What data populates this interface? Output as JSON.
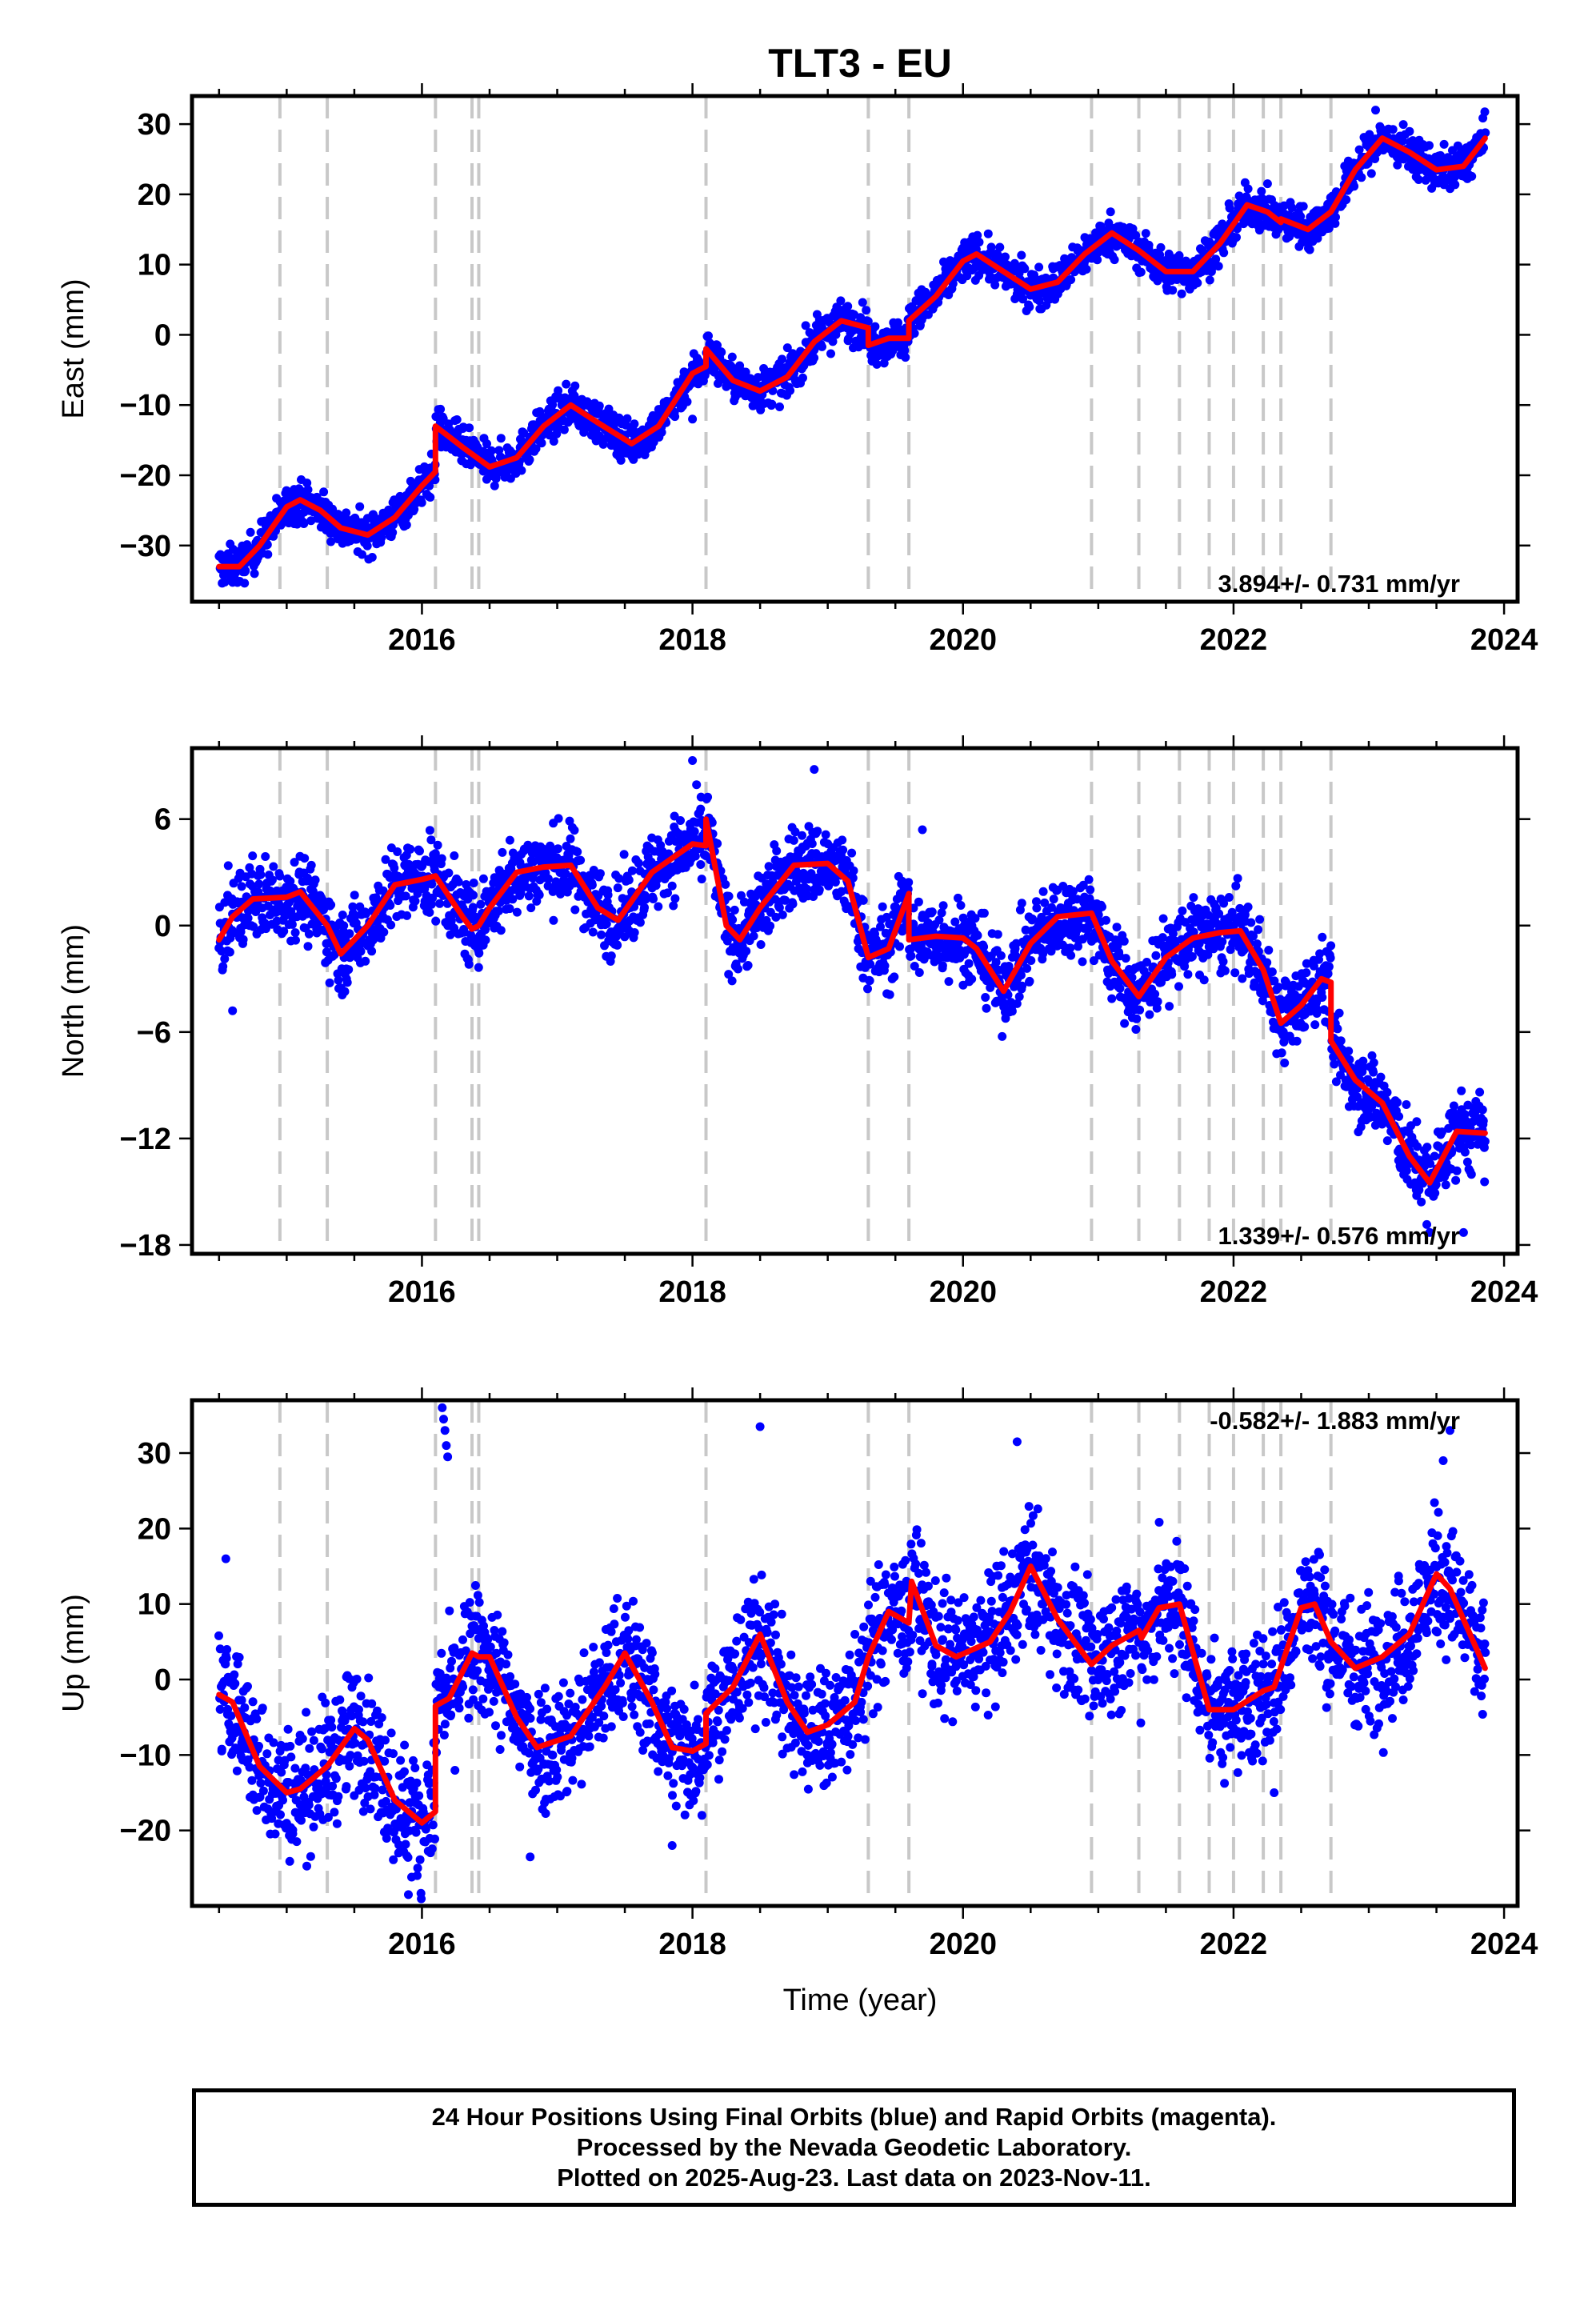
{
  "chart_data": {
    "title": "TLT3 - EU",
    "xlabel": "Time (year)",
    "xlim": [
      2014.3,
      2024.1
    ],
    "xticks": [
      2016,
      2018,
      2020,
      2022,
      2024
    ],
    "xtick_labels": [
      "2016",
      "2018",
      "2020",
      "2022",
      "2024"
    ],
    "colors": {
      "final_orbits": "#0000ff",
      "model_fit": "#ff0000",
      "step_lines": "#c8c8c8"
    },
    "steps": [
      2014.95,
      2015.3,
      2016.1,
      2016.37,
      2016.42,
      2018.1,
      2019.3,
      2019.6,
      2020.95,
      2021.3,
      2021.6,
      2021.82,
      2022.0,
      2022.22,
      2022.35,
      2022.72
    ],
    "panels": [
      {
        "type": "scatter",
        "component": "east",
        "ylabel": "East (mm)",
        "ylim": [
          -38,
          34
        ],
        "yticks": [
          -30,
          -20,
          -10,
          0,
          10,
          20,
          30
        ],
        "ytick_labels": [
          "−30",
          "−20",
          "−10",
          "0",
          "10",
          "20",
          "30"
        ],
        "rate_label": "3.894+/- 0.731 mm/yr",
        "rate_position": "bottom-right",
        "noise_mm": 1.4,
        "fit": [
          [
            2014.5,
            -33.0
          ],
          [
            2014.65,
            -33.0
          ],
          [
            2014.8,
            -30.0
          ],
          [
            2015.0,
            -24.5
          ],
          [
            2015.1,
            -23.5
          ],
          [
            2015.25,
            -25.0
          ],
          [
            2015.4,
            -27.5
          ],
          [
            2015.6,
            -28.5
          ],
          [
            2015.8,
            -26.0
          ],
          [
            2016.0,
            -21.5
          ],
          [
            2016.1,
            -19.5
          ],
          [
            2016.1,
            -13.0
          ],
          [
            2016.3,
            -16.0
          ],
          [
            2016.5,
            -18.8
          ],
          [
            2016.7,
            -17.5
          ],
          [
            2016.9,
            -13.0
          ],
          [
            2017.1,
            -10.0
          ],
          [
            2017.3,
            -12.5
          ],
          [
            2017.55,
            -15.5
          ],
          [
            2017.75,
            -13.0
          ],
          [
            2018.0,
            -5.5
          ],
          [
            2018.1,
            -4.5
          ],
          [
            2018.1,
            -2.0
          ],
          [
            2018.3,
            -6.5
          ],
          [
            2018.5,
            -8.0
          ],
          [
            2018.7,
            -6.0
          ],
          [
            2018.9,
            -1.0
          ],
          [
            2019.1,
            2.0
          ],
          [
            2019.3,
            1.0
          ],
          [
            2019.3,
            -1.5
          ],
          [
            2019.45,
            -0.5
          ],
          [
            2019.6,
            -0.5
          ],
          [
            2019.6,
            2.0
          ],
          [
            2019.8,
            5.5
          ],
          [
            2020.0,
            10.5
          ],
          [
            2020.1,
            11.5
          ],
          [
            2020.3,
            9.0
          ],
          [
            2020.5,
            6.5
          ],
          [
            2020.7,
            7.5
          ],
          [
            2020.9,
            11.5
          ],
          [
            2021.1,
            14.5
          ],
          [
            2021.3,
            12.0
          ],
          [
            2021.5,
            9.0
          ],
          [
            2021.7,
            9.0
          ],
          [
            2021.9,
            13.0
          ],
          [
            2022.1,
            18.5
          ],
          [
            2022.25,
            17.5
          ],
          [
            2022.35,
            16.0
          ],
          [
            2022.35,
            16.5
          ],
          [
            2022.55,
            15.0
          ],
          [
            2022.72,
            17.5
          ],
          [
            2022.9,
            23.5
          ],
          [
            2023.1,
            28.0
          ],
          [
            2023.3,
            26.0
          ],
          [
            2023.5,
            23.5
          ],
          [
            2023.7,
            24.0
          ],
          [
            2023.86,
            28.0
          ]
        ],
        "outliers": [
          [
            2018.0,
            -12.0
          ],
          [
            2023.05,
            32.0
          ]
        ]
      },
      {
        "type": "scatter",
        "component": "north",
        "ylabel": "North (mm)",
        "ylim": [
          -18.5,
          10
        ],
        "yticks": [
          -18,
          -12,
          -6,
          0,
          6
        ],
        "ytick_labels": [
          "−18",
          "−12",
          "−6",
          "0",
          "6"
        ],
        "rate_label": "1.339+/- 0.576 mm/yr",
        "rate_position": "bottom-right",
        "noise_mm": 1.1,
        "fit": [
          [
            2014.5,
            -0.8
          ],
          [
            2014.6,
            0.5
          ],
          [
            2014.75,
            1.5
          ],
          [
            2015.0,
            1.6
          ],
          [
            2015.1,
            1.9
          ],
          [
            2015.3,
            0.0
          ],
          [
            2015.4,
            -1.6
          ],
          [
            2015.6,
            0.0
          ],
          [
            2015.8,
            2.3
          ],
          [
            2016.0,
            2.6
          ],
          [
            2016.1,
            2.8
          ],
          [
            2016.3,
            0.5
          ],
          [
            2016.37,
            -0.2
          ],
          [
            2016.42,
            0.0
          ],
          [
            2016.5,
            1.0
          ],
          [
            2016.7,
            3.0
          ],
          [
            2016.9,
            3.3
          ],
          [
            2017.1,
            3.4
          ],
          [
            2017.3,
            1.0
          ],
          [
            2017.45,
            0.3
          ],
          [
            2017.7,
            3.0
          ],
          [
            2018.0,
            4.6
          ],
          [
            2018.1,
            4.5
          ],
          [
            2018.1,
            6.0
          ],
          [
            2018.25,
            0.0
          ],
          [
            2018.35,
            -0.8
          ],
          [
            2018.5,
            1.0
          ],
          [
            2018.75,
            3.4
          ],
          [
            2019.0,
            3.5
          ],
          [
            2019.15,
            2.5
          ],
          [
            2019.3,
            -1.8
          ],
          [
            2019.45,
            -1.3
          ],
          [
            2019.6,
            1.8
          ],
          [
            2019.6,
            -0.8
          ],
          [
            2019.8,
            -0.6
          ],
          [
            2020.0,
            -0.7
          ],
          [
            2020.1,
            -1.3
          ],
          [
            2020.3,
            -3.7
          ],
          [
            2020.5,
            -1.0
          ],
          [
            2020.7,
            0.5
          ],
          [
            2020.95,
            0.7
          ],
          [
            2021.1,
            -2.0
          ],
          [
            2021.3,
            -4.0
          ],
          [
            2021.5,
            -1.8
          ],
          [
            2021.7,
            -0.7
          ],
          [
            2021.9,
            -0.4
          ],
          [
            2022.05,
            -0.3
          ],
          [
            2022.22,
            -2.5
          ],
          [
            2022.35,
            -5.5
          ],
          [
            2022.5,
            -4.5
          ],
          [
            2022.65,
            -3.0
          ],
          [
            2022.72,
            -3.2
          ],
          [
            2022.72,
            -6.5
          ],
          [
            2022.9,
            -8.7
          ],
          [
            2023.1,
            -10.0
          ],
          [
            2023.3,
            -13.0
          ],
          [
            2023.45,
            -14.5
          ],
          [
            2023.65,
            -11.6
          ],
          [
            2023.86,
            -11.7
          ]
        ],
        "outliers": [
          [
            2014.6,
            -4.8
          ],
          [
            2018.0,
            9.3
          ],
          [
            2018.9,
            8.8
          ],
          [
            2019.7,
            5.4
          ],
          [
            2023.45,
            -17.3
          ],
          [
            2023.7,
            -17.3
          ]
        ]
      },
      {
        "type": "scatter",
        "component": "up",
        "ylabel": "Up (mm)",
        "ylim": [
          -30,
          37
        ],
        "yticks": [
          -20,
          -10,
          0,
          10,
          20,
          30
        ],
        "ytick_labels": [
          "−20",
          "−10",
          "0",
          "10",
          "20",
          "30"
        ],
        "rate_label": "-0.582+/- 1.883 mm/yr",
        "rate_position": "top-right",
        "noise_mm": 4.2,
        "fit": [
          [
            2014.5,
            -2.0
          ],
          [
            2014.6,
            -3.0
          ],
          [
            2014.8,
            -11.5
          ],
          [
            2015.0,
            -15.0
          ],
          [
            2015.1,
            -14.5
          ],
          [
            2015.3,
            -11.5
          ],
          [
            2015.5,
            -6.5
          ],
          [
            2015.6,
            -8.0
          ],
          [
            2015.8,
            -16.0
          ],
          [
            2016.0,
            -19.0
          ],
          [
            2016.1,
            -17.5
          ],
          [
            2016.1,
            -3.5
          ],
          [
            2016.2,
            -2.5
          ],
          [
            2016.37,
            3.5
          ],
          [
            2016.42,
            3.0
          ],
          [
            2016.5,
            3.0
          ],
          [
            2016.7,
            -5.0
          ],
          [
            2016.85,
            -9.0
          ],
          [
            2017.1,
            -7.5
          ],
          [
            2017.35,
            -1.0
          ],
          [
            2017.5,
            3.5
          ],
          [
            2017.7,
            -3.0
          ],
          [
            2017.85,
            -9.0
          ],
          [
            2018.0,
            -9.5
          ],
          [
            2018.1,
            -8.5
          ],
          [
            2018.1,
            -4.5
          ],
          [
            2018.3,
            -1.0
          ],
          [
            2018.5,
            6.0
          ],
          [
            2018.7,
            -3.0
          ],
          [
            2018.85,
            -7.0
          ],
          [
            2019.0,
            -6.0
          ],
          [
            2019.2,
            -3.0
          ],
          [
            2019.3,
            3.0
          ],
          [
            2019.45,
            9.0
          ],
          [
            2019.6,
            7.5
          ],
          [
            2019.62,
            13.0
          ],
          [
            2019.8,
            4.5
          ],
          [
            2019.95,
            3.0
          ],
          [
            2020.2,
            5.0
          ],
          [
            2020.35,
            9.0
          ],
          [
            2020.5,
            15.0
          ],
          [
            2020.7,
            8.0
          ],
          [
            2020.95,
            2.0
          ],
          [
            2021.1,
            4.5
          ],
          [
            2021.3,
            6.5
          ],
          [
            2021.32,
            5.5
          ],
          [
            2021.45,
            9.5
          ],
          [
            2021.6,
            10.0
          ],
          [
            2021.82,
            -4.0
          ],
          [
            2022.0,
            -4.0
          ],
          [
            2022.22,
            -1.5
          ],
          [
            2022.3,
            -1.0
          ],
          [
            2022.5,
            9.5
          ],
          [
            2022.6,
            10.0
          ],
          [
            2022.72,
            5.0
          ],
          [
            2022.9,
            1.5
          ],
          [
            2023.1,
            3.0
          ],
          [
            2023.3,
            6.0
          ],
          [
            2023.5,
            14.0
          ],
          [
            2023.6,
            12.0
          ],
          [
            2023.86,
            1.5
          ]
        ],
        "outliers": [
          [
            2014.55,
            16.0
          ],
          [
            2016.15,
            36.0
          ],
          [
            2016.16,
            34.5
          ],
          [
            2016.17,
            33.0
          ],
          [
            2016.18,
            31.0
          ],
          [
            2016.19,
            29.5
          ],
          [
            2016.8,
            -23.5
          ],
          [
            2017.85,
            -22.0
          ],
          [
            2018.5,
            33.5
          ],
          [
            2020.4,
            31.5
          ],
          [
            2022.3,
            -15.0
          ],
          [
            2023.55,
            29.0
          ],
          [
            2023.6,
            33.0
          ],
          [
            2015.9,
            -28.5
          ]
        ]
      }
    ]
  },
  "footer": {
    "lines": [
      "24 Hour Positions Using Final Orbits (blue) and Rapid Orbits (magenta).",
      "Processed by the Nevada Geodetic Laboratory.",
      "Plotted on 2025-Aug-23. Last data on 2023-Nov-11."
    ]
  }
}
